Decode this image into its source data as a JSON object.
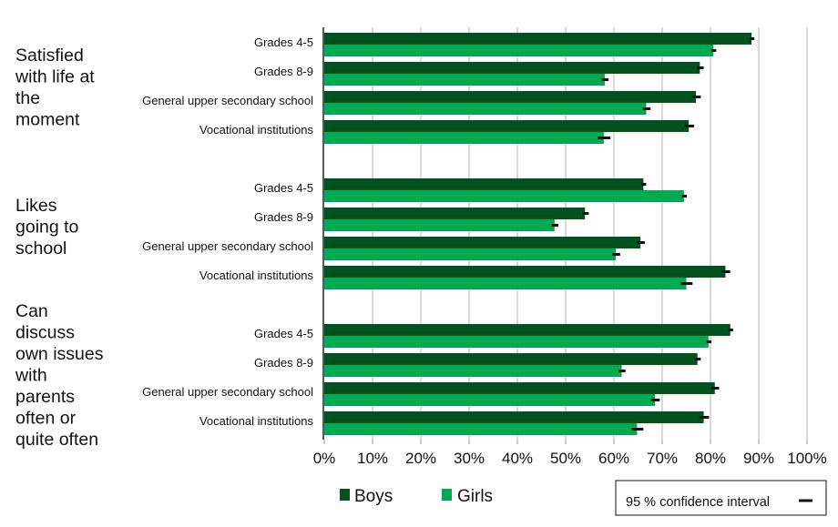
{
  "chart_data": {
    "type": "bar",
    "orientation": "horizontal",
    "xlim": [
      0,
      100
    ],
    "x_tick_labels": [
      "0%",
      "10%",
      "20%",
      "30%",
      "40%",
      "50%",
      "60%",
      "70%",
      "80%",
      "90%",
      "100%"
    ],
    "grid": true,
    "legend": {
      "position": "bottom",
      "entries": [
        "Boys",
        "Girls"
      ]
    },
    "ci_legend": "95 % confidence interval",
    "colors": {
      "Boys": "#00531f",
      "Girls": "#00aa50",
      "ci": "#111111"
    },
    "groups": [
      {
        "title_lines": [
          "Satisfied",
          "with life at",
          "the",
          "moment"
        ],
        "categories": [
          "Grades 4-5",
          "Grades 8-9",
          "General upper secondary school",
          "Vocational institutions"
        ],
        "series": [
          {
            "name": "Boys",
            "values": [
              88.5,
              77.8,
              77.0,
              75.5
            ],
            "ci": [
              0.4,
              0.6,
              0.8,
              0.9
            ]
          },
          {
            "name": "Girls",
            "values": [
              80.6,
              58.1,
              66.7,
              57.9
            ],
            "ci": [
              0.4,
              0.6,
              0.7,
              1.2
            ]
          }
        ]
      },
      {
        "title_lines": [
          "Likes",
          "going to",
          "school"
        ],
        "categories": [
          "Grades 4-5",
          "Grades 8-9",
          "General upper secondary school",
          "Vocational institutions"
        ],
        "series": [
          {
            "name": "Boys",
            "values": [
              66.1,
              54.0,
              65.5,
              83.1
            ],
            "ci": [
              0.4,
              0.6,
              0.7,
              0.8
            ]
          },
          {
            "name": "Girls",
            "values": [
              74.5,
              47.7,
              60.4,
              75.0
            ],
            "ci": [
              0.4,
              0.6,
              0.7,
              1.1
            ]
          }
        ]
      },
      {
        "title_lines": [
          "Can",
          "discuss",
          "own issues",
          "with",
          "parents",
          "often or",
          "quite often"
        ],
        "categories": [
          "Grades 4-5",
          "Grades 8-9",
          "General upper secondary school",
          "Vocational institutions"
        ],
        "series": [
          {
            "name": "Boys",
            "values": [
              84.1,
              77.3,
              80.9,
              78.6
            ],
            "ci": [
              0.4,
              0.5,
              0.7,
              0.9
            ]
          },
          {
            "name": "Girls",
            "values": [
              79.6,
              61.6,
              68.5,
              64.8
            ],
            "ci": [
              0.4,
              0.6,
              0.8,
              1.1
            ]
          }
        ]
      }
    ]
  }
}
